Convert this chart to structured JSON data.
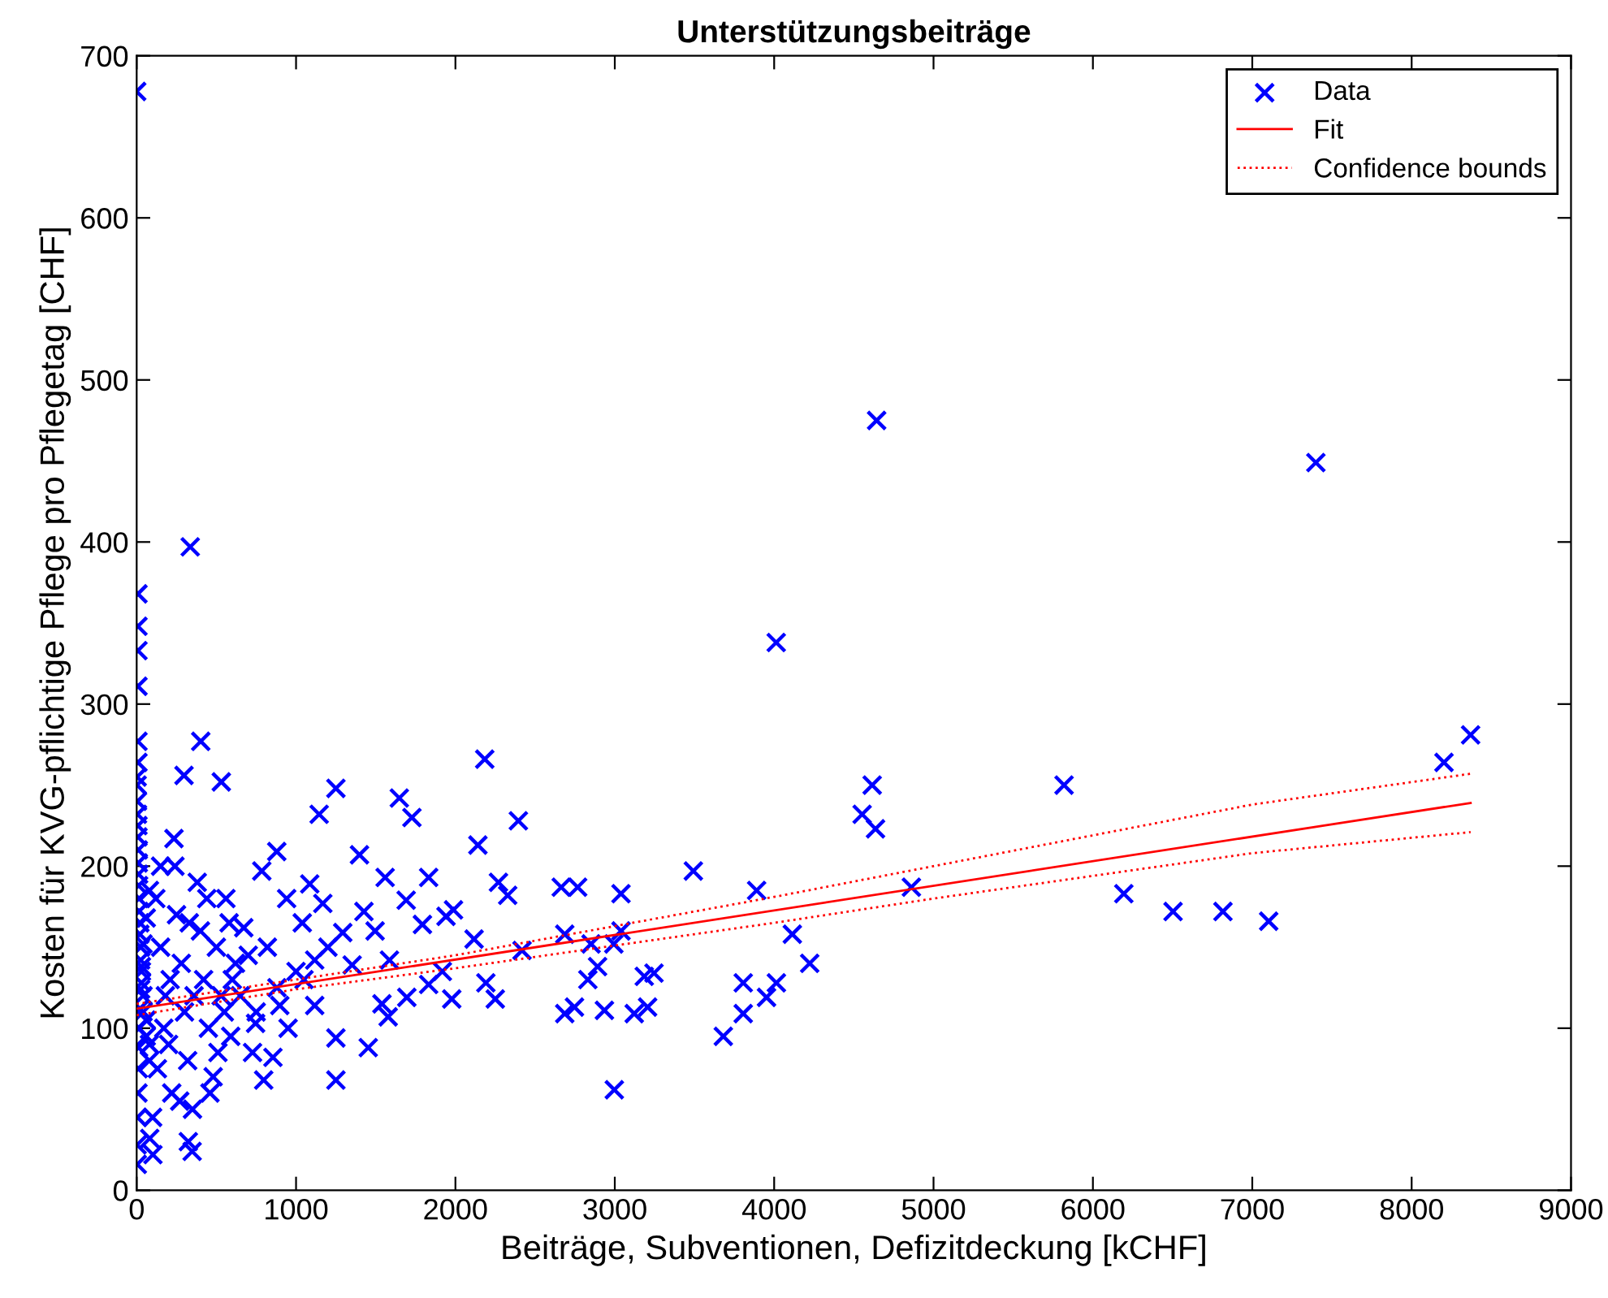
{
  "chart_data": {
    "type": "scatter",
    "title": "Unterstützungsbeiträge",
    "xlabel": "Beiträge, Subventionen, Defizitdeckung [kCHF]",
    "ylabel": "Kosten für KVG-pflichtige Pflege pro Pflegetag [CHF]",
    "xlim": [
      0,
      9000
    ],
    "xticks": [
      0,
      1000,
      2000,
      3000,
      4000,
      5000,
      6000,
      7000,
      8000,
      9000
    ],
    "ylim": [
      0,
      700
    ],
    "yticks": [
      0,
      100,
      200,
      300,
      400,
      500,
      600,
      700
    ],
    "grid": false,
    "legend": "top right",
    "series": [
      {
        "name": "Data",
        "marker": "cross",
        "color": "#0000ff",
        "x": [
          0,
          8,
          8,
          8,
          8,
          8,
          8,
          336,
          402,
          297,
          531,
          1250,
          1145,
          1648,
          1727,
          2184,
          2395,
          234,
          2141,
          879,
          1398,
          1832,
          1559,
          785,
          1086,
          941,
          1168,
          1426,
          1691,
          1988,
          2270,
          2328,
          2664,
          672,
          1039,
          1293,
          1496,
          1793,
          1941,
          2117,
          2418,
          1000,
          1117,
          1352,
          1586,
          1832,
          1918,
          2191,
          2250,
          1977,
          1695,
          1539,
          1578,
          1117,
          898,
          746,
          727,
          855,
          1250,
          1453,
          797,
          1250,
          324,
          348,
          4,
          102,
          82,
          4615,
          4643,
          4552,
          4636,
          5819,
          4861,
          6194,
          6503,
          6816,
          7103,
          7399,
          8203,
          8370,
          4013,
          2767,
          3039,
          3493,
          3890,
          4114,
          4223,
          3806,
          4014,
          3952,
          3806,
          3681,
          2997,
          3206,
          3122,
          2935,
          2747,
          2686,
          3185,
          3246,
          2831,
          2892,
          2686,
          2851,
          2994,
          3039,
          3,
          5,
          8,
          10,
          12,
          15,
          20,
          25,
          30,
          40,
          60,
          80,
          3,
          5,
          8,
          10,
          12,
          15,
          20,
          25,
          30,
          40,
          60,
          80,
          3,
          5,
          8,
          10,
          12,
          15,
          20,
          25,
          30,
          40,
          60,
          80,
          120,
          150,
          180,
          200,
          220,
          250,
          280,
          300,
          320,
          350,
          380,
          400,
          420,
          450,
          480,
          500,
          530,
          560,
          590,
          620,
          150,
          100,
          130,
          170,
          210,
          240,
          270,
          330,
          360,
          440,
          460,
          510,
          550,
          580,
          600,
          650,
          700,
          750,
          820,
          880,
          950,
          1050,
          1200
        ],
        "values": [
          678,
          368,
          348,
          333,
          311,
          277,
          264,
          397,
          277,
          256,
          252,
          248,
          232,
          242,
          230,
          266,
          228,
          217,
          213,
          209,
          207,
          193,
          193,
          197,
          189,
          180,
          177,
          172,
          179,
          173,
          190,
          182,
          187,
          162,
          165,
          159,
          160,
          164,
          169,
          155,
          148,
          135,
          142,
          139,
          142,
          127,
          135,
          128,
          118,
          118,
          119,
          115,
          107,
          114,
          114,
          103,
          85,
          82,
          94,
          88,
          68,
          68,
          30,
          24,
          16,
          22,
          32,
          250,
          475,
          232,
          223,
          250,
          187,
          183,
          172,
          172,
          166,
          449,
          264,
          281,
          338,
          187,
          183,
          197,
          185,
          158,
          140,
          128,
          128,
          119,
          109,
          95,
          62,
          113,
          109,
          111,
          113,
          109,
          132,
          134,
          130,
          138,
          158,
          152,
          152,
          160,
          255,
          240,
          225,
          210,
          195,
          180,
          165,
          150,
          135,
          120,
          105,
          90,
          28,
          45,
          60,
          75,
          88,
          100,
          112,
          124,
          138,
          152,
          168,
          185,
          250,
          232,
          218,
          202,
          188,
          172,
          158,
          142,
          128,
          110,
          95,
          80,
          180,
          150,
          120,
          90,
          60,
          170,
          140,
          110,
          80,
          50,
          190,
          160,
          130,
          100,
          70,
          150,
          120,
          180,
          95,
          140,
          200,
          45,
          75,
          100,
          130,
          200,
          55,
          165,
          120,
          180,
          60,
          85,
          110,
          165,
          130,
          120,
          145,
          110,
          150,
          125,
          100,
          130,
          150
        ]
      },
      {
        "name": "Fit",
        "type": "line",
        "line_style": "solid",
        "color": "#ff0000",
        "x": [
          0,
          8370
        ],
        "values": [
          112,
          239
        ]
      },
      {
        "name": "Confidence bounds",
        "type": "line",
        "line_style": "dotted",
        "color": "#ff0000",
        "x": [
          0,
          1000,
          2000,
          3000,
          4000,
          5000,
          6000,
          7000,
          8370
        ],
        "values": [
          115,
          130,
          145,
          163,
          181,
          200,
          219,
          238,
          257
        ]
      },
      {
        "type": "line",
        "line_style": "dotted",
        "color": "#ff0000",
        "x": [
          0,
          1000,
          2000,
          3000,
          4000,
          5000,
          6000,
          7000,
          8370
        ],
        "values": [
          108,
          124,
          137,
          151,
          165,
          180,
          194,
          208,
          221
        ]
      }
    ]
  }
}
